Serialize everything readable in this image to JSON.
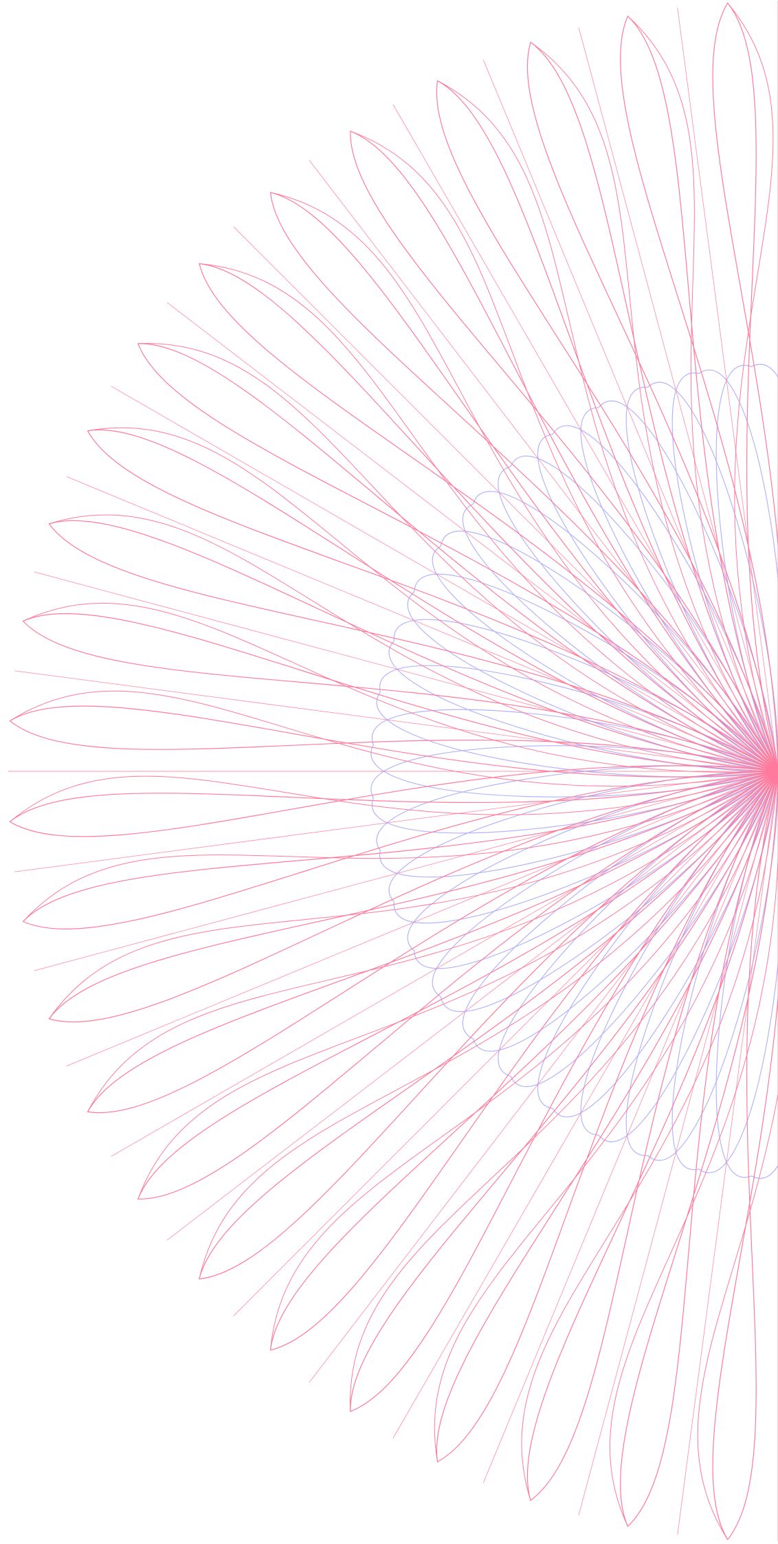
{
  "artwork": {
    "colors": {
      "background": "#ffffff",
      "outer_petals": "#ff7a9c",
      "inner_loops": "#b3b3ff"
    },
    "outer_petal_count": 24,
    "inner_loop_count": 24,
    "ray_count": 24
  }
}
